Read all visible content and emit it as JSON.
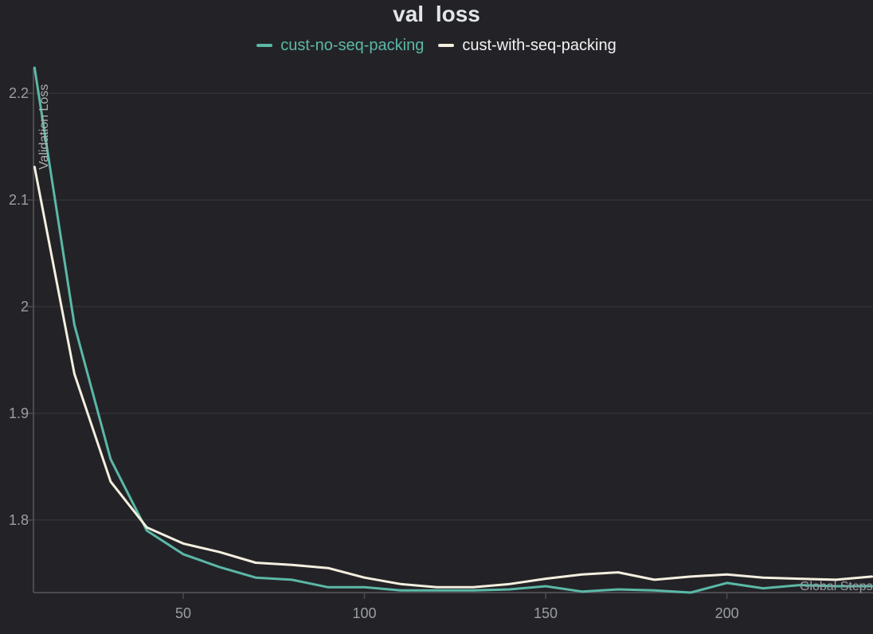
{
  "title": "val loss",
  "legend": {
    "items": [
      "cust-no-seq-packing",
      "cust-with-seq-packing"
    ]
  },
  "colors": {
    "background": "#232327",
    "grid": "#3a3a3e",
    "axis": "#4b4b52",
    "tick_text": "#9b9ea1",
    "axis_label_text": "#aeb1b3",
    "title_text": "#e2e6e9",
    "series_teal": "#5bb8a7",
    "series_cream": "#f5efe0"
  },
  "chart_data": {
    "type": "line",
    "title": "val loss",
    "xlabel": "Global Steps",
    "ylabel": "Validation Loss",
    "grid": true,
    "legend_position": "top",
    "xlim": [
      8.7,
      240.3
    ],
    "ylim": [
      1.732,
      2.224
    ],
    "x_ticks": [
      {
        "value": 50,
        "label": "50"
      },
      {
        "value": 100,
        "label": "100"
      },
      {
        "value": 150,
        "label": "150"
      },
      {
        "value": 200,
        "label": "200"
      }
    ],
    "y_ticks": [
      {
        "value": 2.2,
        "label": "2.2"
      },
      {
        "value": 2.1,
        "label": "2.1"
      },
      {
        "value": 2.0,
        "label": "2"
      },
      {
        "value": 1.9,
        "label": "1.9"
      },
      {
        "value": 1.8,
        "label": "1.8"
      }
    ],
    "x": [
      9,
      20,
      30,
      40,
      50,
      60,
      70,
      80,
      90,
      100,
      110,
      120,
      130,
      140,
      150,
      160,
      170,
      180,
      190,
      200,
      210,
      220,
      230,
      240
    ],
    "series": [
      {
        "name": "cust-no-seq-packing",
        "color": "#5bb8a7",
        "values": [
          2.224,
          1.983,
          1.857,
          1.79,
          1.768,
          1.756,
          1.746,
          1.744,
          1.737,
          1.737,
          1.734,
          1.734,
          1.734,
          1.735,
          1.738,
          1.733,
          1.735,
          1.734,
          1.732,
          1.741,
          1.736,
          1.739,
          1.738,
          1.738
        ]
      },
      {
        "name": "cust-with-seq-packing",
        "color": "#f5efe0",
        "values": [
          2.131,
          1.937,
          1.836,
          1.793,
          1.778,
          1.77,
          1.76,
          1.758,
          1.755,
          1.746,
          1.74,
          1.737,
          1.737,
          1.74,
          1.745,
          1.749,
          1.751,
          1.744,
          1.747,
          1.749,
          1.746,
          1.745,
          1.744,
          1.747
        ]
      }
    ]
  }
}
